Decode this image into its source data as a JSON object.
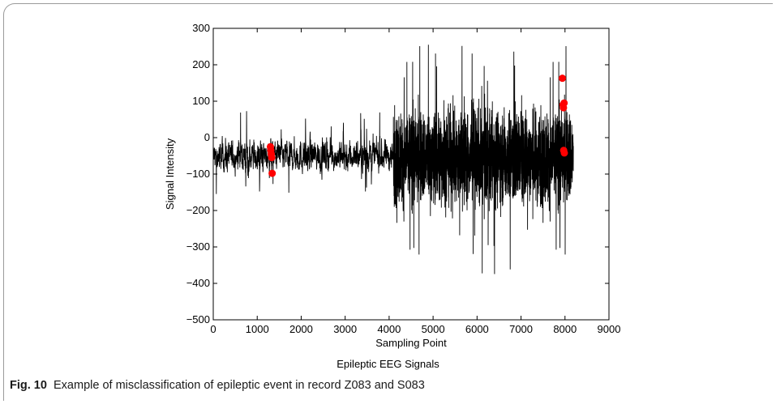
{
  "chart_data": {
    "type": "line",
    "title": "",
    "xlabel": "Sampling Point",
    "ylabel": "Signal Intensity",
    "xlim": [
      0,
      9000
    ],
    "ylim": [
      -500,
      300
    ],
    "xticks": [
      0,
      1000,
      2000,
      3000,
      4000,
      5000,
      6000,
      7000,
      8000,
      9000
    ],
    "yticks": [
      300,
      200,
      100,
      0,
      -100,
      -200,
      -300,
      -400,
      -500
    ],
    "ytick_labels": [
      "300",
      "200",
      "100",
      "0",
      "−100",
      "−200",
      "−300",
      "−400",
      "−500"
    ],
    "grid": false,
    "signal": {
      "color": "#000000",
      "n_points": 8192,
      "segments": [
        {
          "x_range": [
            0,
            4096
          ],
          "y_center": -50,
          "y_span": [
            -180,
            75
          ]
        },
        {
          "x_range": [
            4096,
            8192
          ],
          "y_center": -55,
          "y_span": [
            -455,
            255
          ]
        }
      ]
    },
    "markers": {
      "color": "#ff0000",
      "points": [
        {
          "x": 1300,
          "y": -25
        },
        {
          "x": 1310,
          "y": -35
        },
        {
          "x": 1320,
          "y": -45
        },
        {
          "x": 1330,
          "y": -55
        },
        {
          "x": 1340,
          "y": -98
        },
        {
          "x": 7940,
          "y": 163
        },
        {
          "x": 7955,
          "y": 90
        },
        {
          "x": 7965,
          "y": 82
        },
        {
          "x": 7980,
          "y": 95
        },
        {
          "x": 7970,
          "y": -35
        },
        {
          "x": 7985,
          "y": -42
        }
      ]
    }
  },
  "subtitle": "Epileptic EEG Signals",
  "caption": {
    "label": "Fig. 10",
    "text": "Example of misclassification of epileptic event in record Z083 and S083"
  }
}
